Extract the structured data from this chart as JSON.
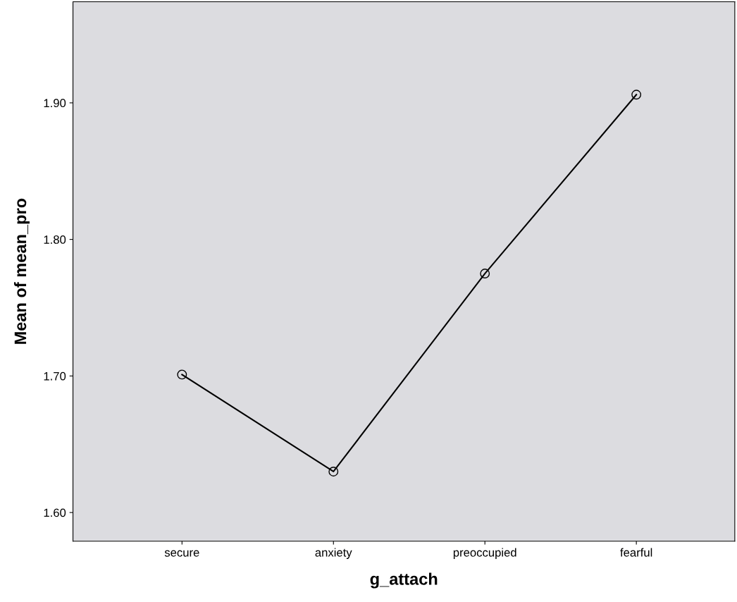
{
  "chart_data": {
    "type": "line",
    "xlabel": "g_attach",
    "ylabel": "Mean of mean_pro",
    "categories": [
      "secure",
      "anxiety",
      "preoccupied",
      "fearful"
    ],
    "series": [
      {
        "color": "#000000",
        "values": [
          1.701,
          1.63,
          1.775,
          1.906
        ]
      }
    ],
    "ylim": [
      1.579,
      1.974
    ],
    "yticks": [
      {
        "value": 1.6,
        "label": "1.60"
      },
      {
        "value": 1.7,
        "label": "1.70"
      },
      {
        "value": 1.8,
        "label": "1.80"
      },
      {
        "value": 1.9,
        "label": "1.90"
      }
    ],
    "marker": "circle",
    "line_style": "solid",
    "grid": false,
    "legend": false
  }
}
